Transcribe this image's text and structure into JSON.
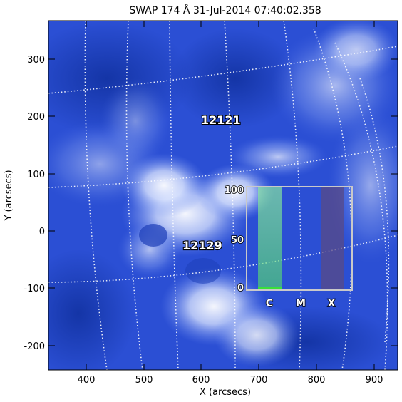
{
  "title": "SWAP 174 Å 31-Jul-2014 07:40:02.358",
  "x_axis": {
    "label": "X (arcsecs)",
    "range": [
      335,
      942
    ],
    "ticks": [
      400,
      500,
      600,
      700,
      800,
      900
    ],
    "tick_labels": [
      "400",
      "500",
      "600",
      "700",
      "800",
      "900"
    ]
  },
  "y_axis": {
    "label": "Y (arcsecs)",
    "range": [
      -240,
      362
    ],
    "ticks": [
      -200,
      -100,
      0,
      100,
      200,
      300
    ],
    "tick_labels": [
      "-200",
      "-100",
      "0",
      "100",
      "200",
      "300"
    ]
  },
  "active_regions": [
    {
      "label": "12121",
      "x_arcsec": 638,
      "y_arcsec": 188
    },
    {
      "label": "12129",
      "x_arcsec": 618,
      "y_arcsec": -22
    }
  ],
  "flare_probability_inset": {
    "y_labels": [
      "100",
      "50",
      "0"
    ],
    "y_values": [
      100,
      50,
      0
    ],
    "classes": [
      "C",
      "M",
      "X"
    ],
    "probabilities": [
      100,
      0,
      100
    ],
    "bar_colors": [
      "#7CF09A",
      "#9aa8d8",
      "#5a4a86"
    ],
    "bar_opacity": [
      0.65,
      0.25,
      0.75
    ]
  },
  "colors": {
    "background_blue": "#2b4fd4",
    "bright_region": "#eef3ff",
    "grid": "#ffffff",
    "inset_frame": "#c9c9c9",
    "c_bar_base": "#39e039"
  }
}
